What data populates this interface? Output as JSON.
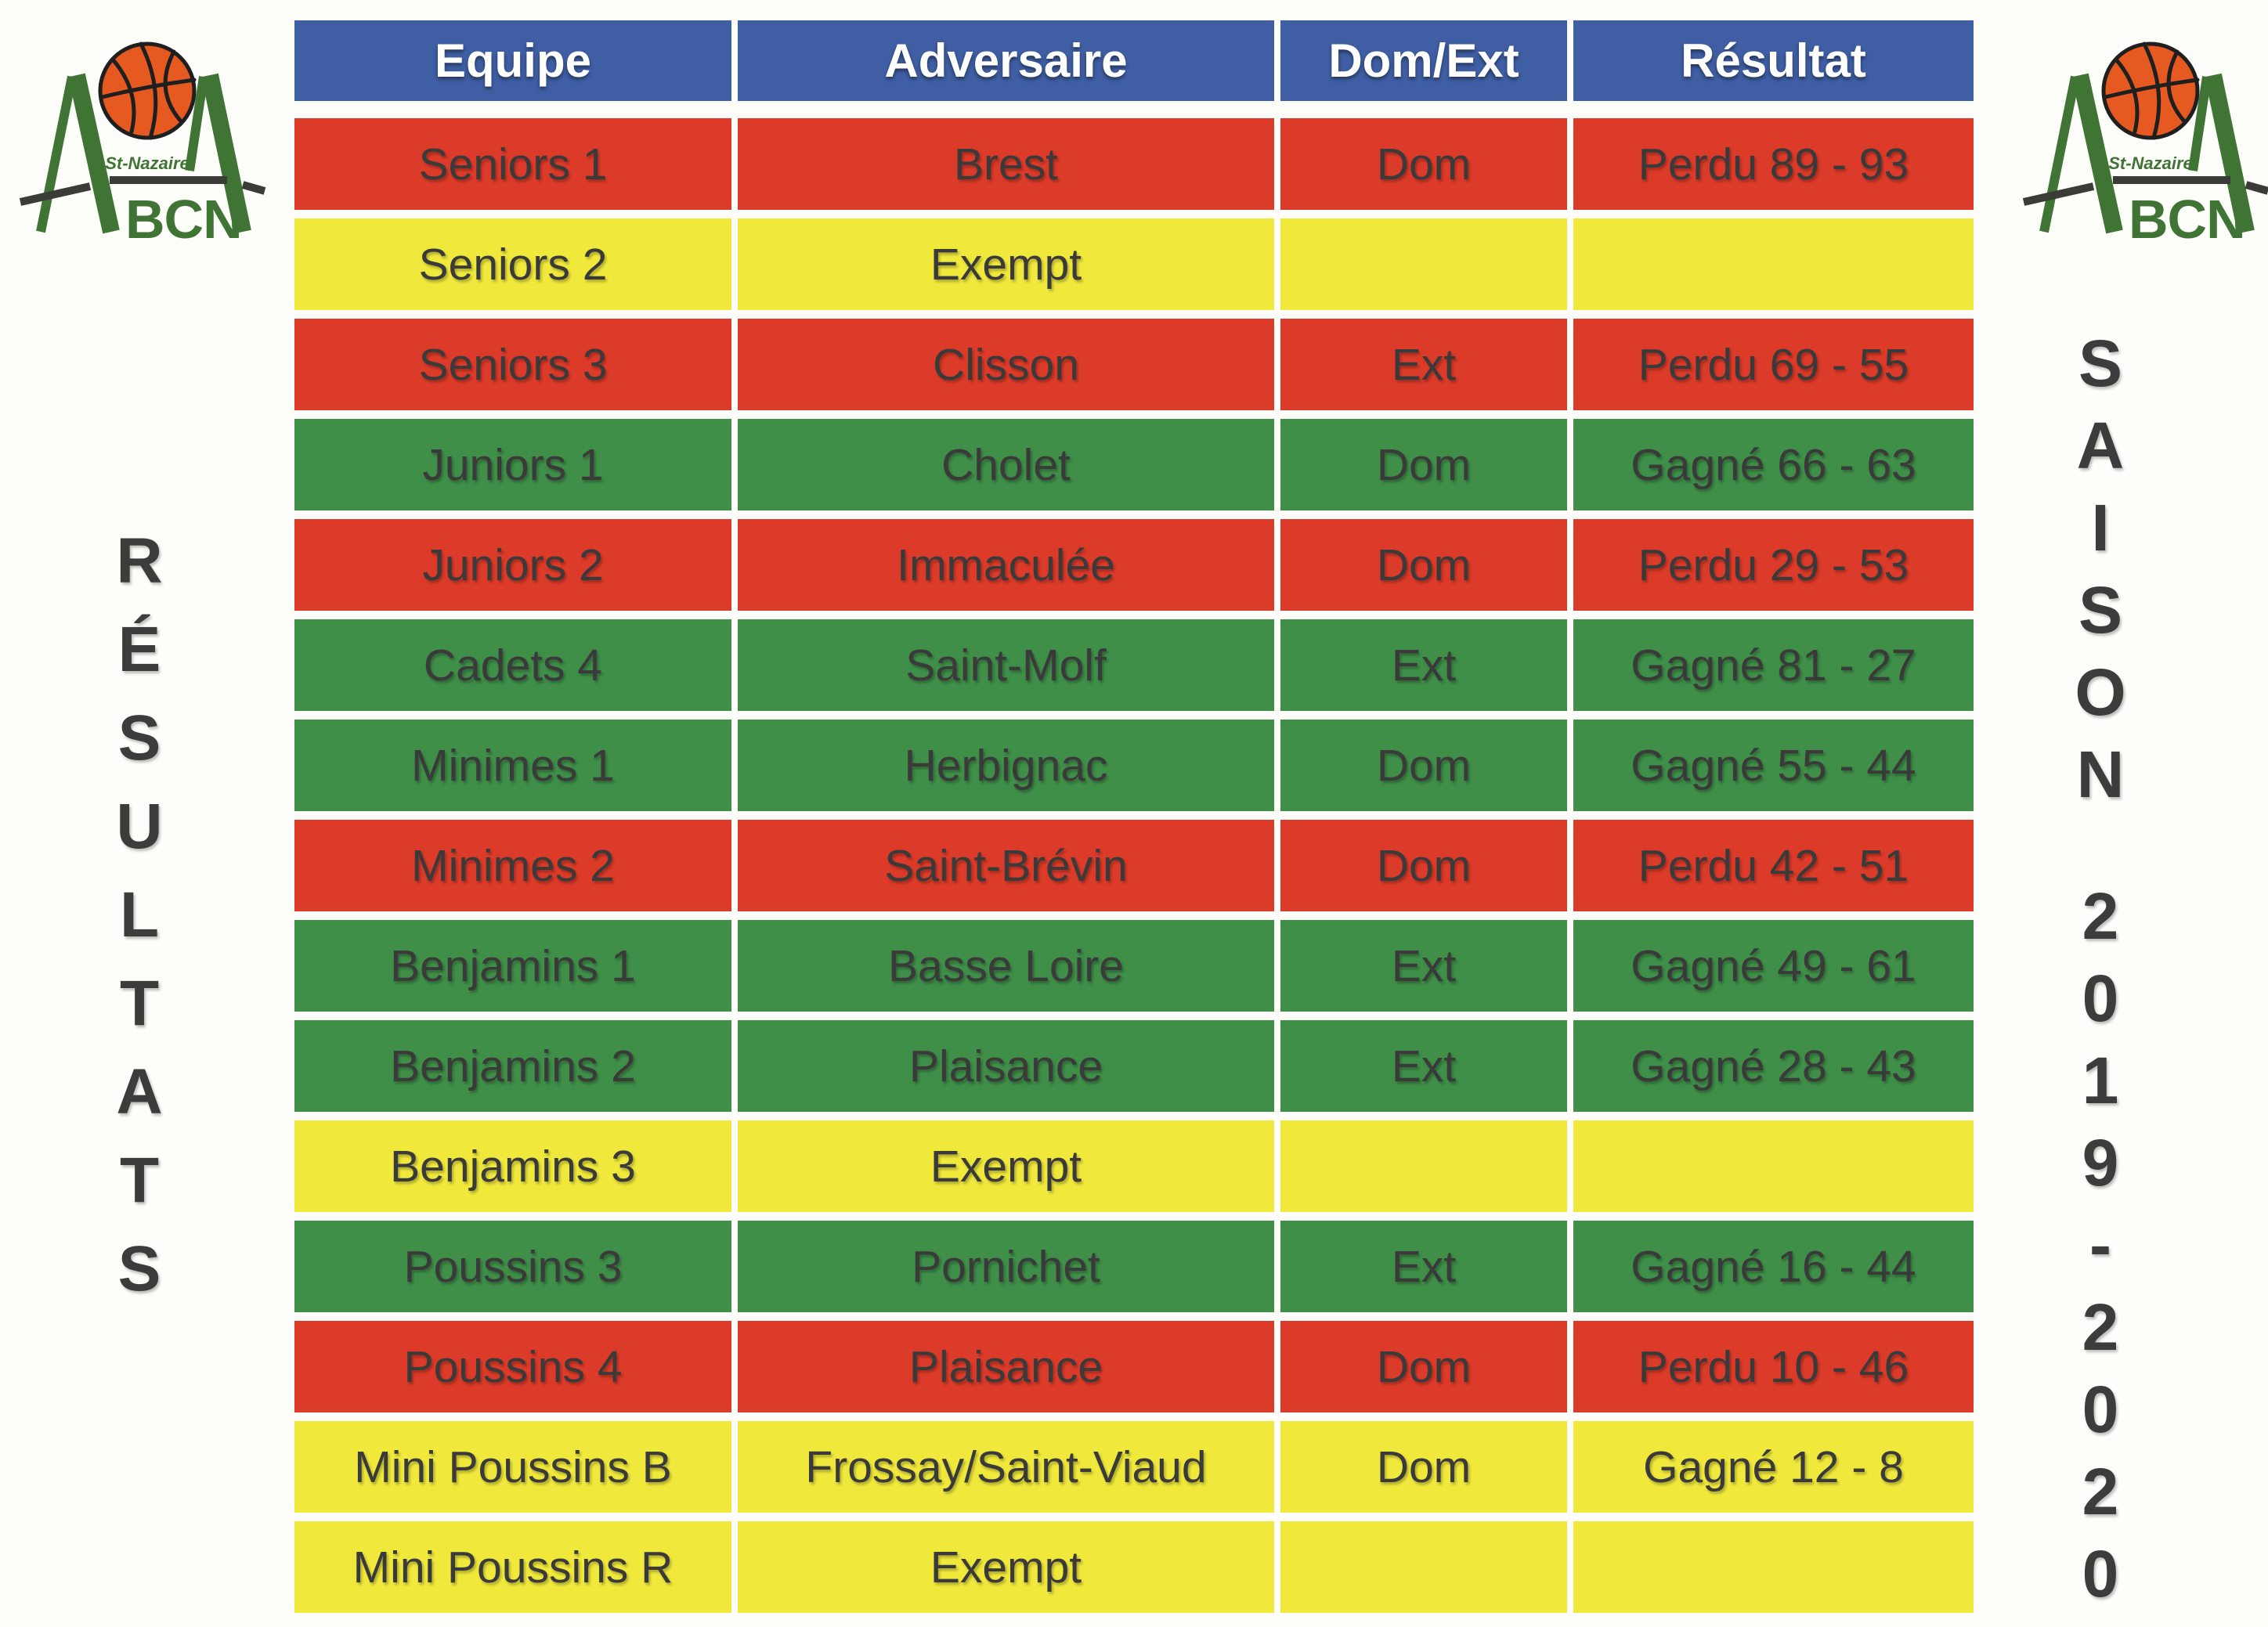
{
  "colors": {
    "header": "#3F5EA3",
    "red": "#DD3B29",
    "green": "#3F8F49",
    "yellow": "#F0E93C",
    "text": "#3A3A3A",
    "logo_green": "#3F7434",
    "ball": "#E65A22",
    "swoosh": "#3B3B37"
  },
  "logo": {
    "city": "St-Nazaire",
    "initials": "BCN"
  },
  "side_left": {
    "text": "RÉSULTATS"
  },
  "side_right": {
    "word": "SAISON",
    "years": "2019-2020"
  },
  "table": {
    "headers": [
      "Equipe",
      "Adversaire",
      "Dom/Ext",
      "Résultat"
    ],
    "rows": [
      {
        "team": "Seniors 1",
        "opponent": "Brest",
        "venue": "Dom",
        "result": "Perdu 89 - 93",
        "color": "red"
      },
      {
        "team": "Seniors 2",
        "opponent": "Exempt",
        "venue": "",
        "result": "",
        "color": "yellow"
      },
      {
        "team": "Seniors 3",
        "opponent": "Clisson",
        "venue": "Ext",
        "result": "Perdu 69 - 55",
        "color": "red"
      },
      {
        "team": "Juniors 1",
        "opponent": "Cholet",
        "venue": "Dom",
        "result": "Gagné 66 - 63",
        "color": "green"
      },
      {
        "team": "Juniors 2",
        "opponent": "Immaculée",
        "venue": "Dom",
        "result": "Perdu 29 - 53",
        "color": "red"
      },
      {
        "team": "Cadets 4",
        "opponent": "Saint-Molf",
        "venue": "Ext",
        "result": "Gagné 81 - 27",
        "color": "green"
      },
      {
        "team": "Minimes 1",
        "opponent": "Herbignac",
        "venue": "Dom",
        "result": "Gagné 55 - 44",
        "color": "green"
      },
      {
        "team": "Minimes 2",
        "opponent": "Saint-Brévin",
        "venue": "Dom",
        "result": "Perdu 42 - 51",
        "color": "red"
      },
      {
        "team": "Benjamins 1",
        "opponent": "Basse Loire",
        "venue": "Ext",
        "result": "Gagné 49 - 61",
        "color": "green"
      },
      {
        "team": "Benjamins 2",
        "opponent": "Plaisance",
        "venue": "Ext",
        "result": "Gagné 28 - 43",
        "color": "green"
      },
      {
        "team": "Benjamins 3",
        "opponent": "Exempt",
        "venue": "",
        "result": "",
        "color": "yellow"
      },
      {
        "team": "Poussins 3",
        "opponent": "Pornichet",
        "venue": "Ext",
        "result": "Gagné 16 - 44",
        "color": "green"
      },
      {
        "team": "Poussins 4",
        "opponent": "Plaisance",
        "venue": "Dom",
        "result": "Perdu 10 - 46",
        "color": "red"
      },
      {
        "team": "Mini Poussins B",
        "opponent": "Frossay/Saint-Viaud",
        "venue": "Dom",
        "result": "Gagné 12 - 8",
        "color": "yellow"
      },
      {
        "team": "Mini Poussins R",
        "opponent": "Exempt",
        "venue": "",
        "result": "",
        "color": "yellow"
      }
    ]
  }
}
